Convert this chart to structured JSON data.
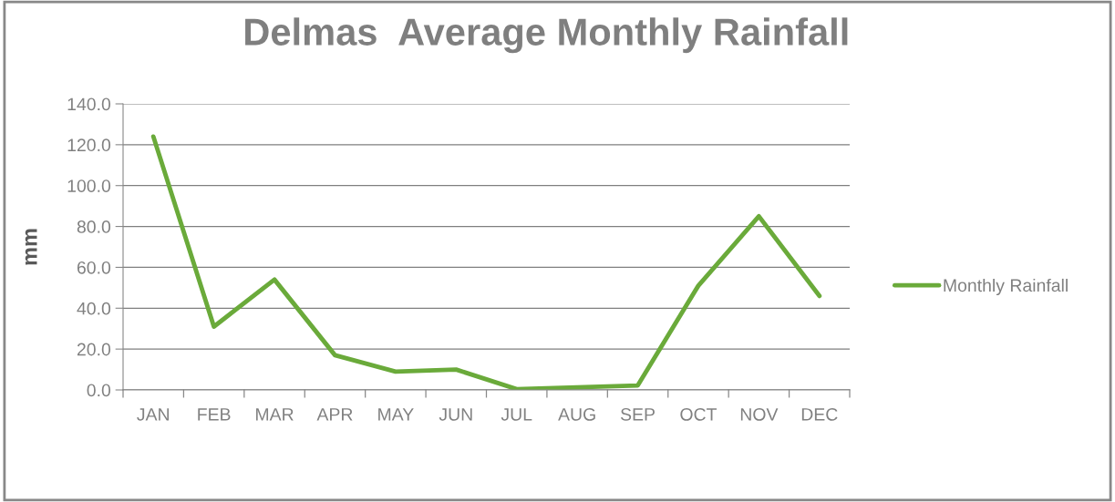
{
  "chart_data": {
    "type": "line",
    "title": "Delmas  Average Monthly Rainfall",
    "ylabel": "mm",
    "categories": [
      "JAN",
      "FEB",
      "MAR",
      "APR",
      "MAY",
      "JUN",
      "JUL",
      "AUG",
      "SEP",
      "OCT",
      "NOV",
      "DEC"
    ],
    "series": [
      {
        "name": "Monthly Rainfall",
        "color": "#6aaa3a",
        "values": [
          124,
          31,
          54,
          17,
          9,
          10,
          0.4,
          1.3,
          2.2,
          51,
          85,
          46
        ]
      }
    ],
    "ylim": [
      0,
      140
    ],
    "yticks": [
      {
        "value": 0,
        "label": "0.0"
      },
      {
        "value": 20,
        "label": "20.0"
      },
      {
        "value": 40,
        "label": "40.0"
      },
      {
        "value": 60,
        "label": "60.0"
      },
      {
        "value": 80,
        "label": "80.0"
      },
      {
        "value": 100,
        "label": "100.0"
      },
      {
        "value": 120,
        "label": "120.0"
      },
      {
        "value": 140,
        "label": "140.0"
      }
    ],
    "grid": "y",
    "legend": "right",
    "marker": "none",
    "line_style": "solid"
  }
}
